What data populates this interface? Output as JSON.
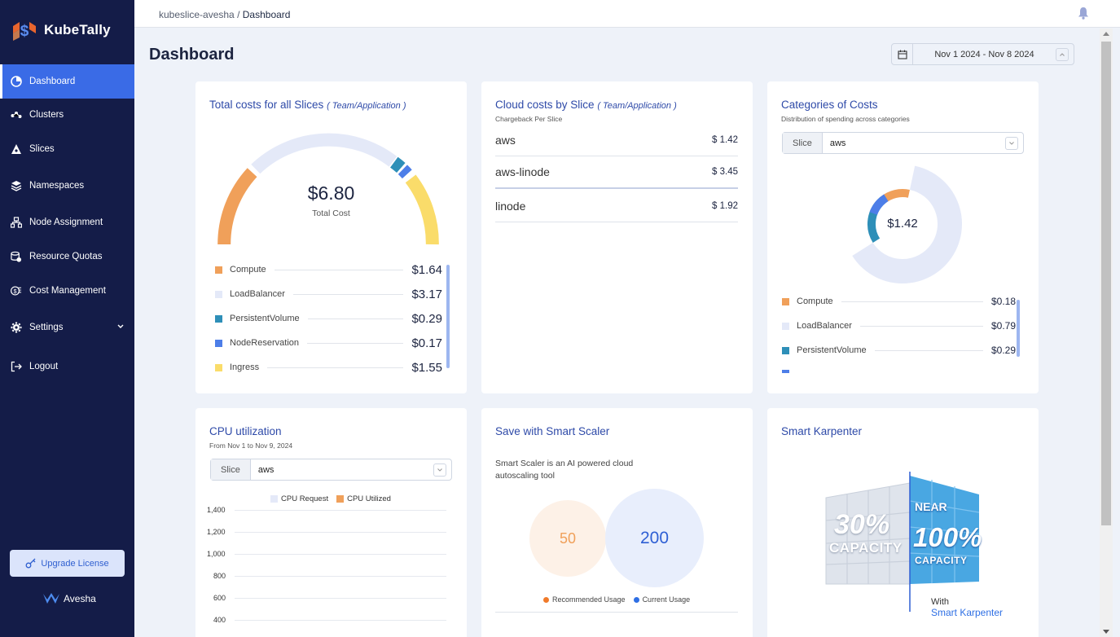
{
  "app": {
    "name": "KubeTally"
  },
  "sidebar": {
    "items": [
      {
        "label": "Dashboard",
        "icon": "pie-chart-icon"
      },
      {
        "label": "Clusters",
        "icon": "cluster-icon"
      },
      {
        "label": "Slices",
        "icon": "slices-icon"
      },
      {
        "label": "Namespaces",
        "icon": "layers-icon"
      },
      {
        "label": "Node Assignment",
        "icon": "sitemap-icon"
      },
      {
        "label": "Resource Quotas",
        "icon": "database-icon"
      },
      {
        "label": "Cost Management",
        "icon": "money-icon"
      },
      {
        "label": "Settings",
        "icon": "gear-icon"
      },
      {
        "label": "Logout",
        "icon": "logout-icon"
      }
    ],
    "upgrade_label": "Upgrade License",
    "brand": "Avesha"
  },
  "topbar": {
    "breadcrumb_root": "kubeslice-avesha",
    "breadcrumb_sep": "/",
    "breadcrumb_current": "Dashboard"
  },
  "page": {
    "title": "Dashboard",
    "date_range": "Nov 1 2024 - Nov 8 2024"
  },
  "total_costs": {
    "title": "Total costs for all Slices",
    "title_tag": "( Team/Application )",
    "amount": "$6.80",
    "amount_label": "Total Cost",
    "colors": {
      "Compute": "#f0a05a",
      "LoadBalancer": "#e4e9f8",
      "PersistentVolume": "#2e8fb8",
      "NodeReservation": "#4d7ee8",
      "Ingress": "#fadc6a"
    },
    "legend": [
      {
        "label": "Compute",
        "value": "$1.64",
        "color": "#f0a05a"
      },
      {
        "label": "LoadBalancer",
        "value": "$3.17",
        "color": "#e4e9f8"
      },
      {
        "label": "PersistentVolume",
        "value": "$0.29",
        "color": "#2e8fb8"
      },
      {
        "label": "NodeReservation",
        "value": "$0.17",
        "color": "#4d7ee8"
      },
      {
        "label": "Ingress",
        "value": "$1.55",
        "color": "#fadc6a"
      }
    ]
  },
  "cloud_costs": {
    "title": "Cloud costs by Slice",
    "title_tag": "( Team/Application )",
    "subtitle": "Chargeback Per Slice",
    "rows": [
      {
        "name": "aws",
        "value": "$ 1.42"
      },
      {
        "name": "aws-linode",
        "value": "$ 3.45"
      },
      {
        "name": "linode",
        "value": "$ 1.92"
      }
    ]
  },
  "categories": {
    "title": "Categories of Costs",
    "subtitle": "Distribution of spending across categories",
    "slice_label": "Slice",
    "slice_value": "aws",
    "donut_total": "$1.42",
    "legend": [
      {
        "label": "Compute",
        "value": "$0.18",
        "color": "#f0a05a"
      },
      {
        "label": "LoadBalancer",
        "value": "$0.79",
        "color": "#e4e9f8"
      },
      {
        "label": "PersistentVolume",
        "value": "$0.29",
        "color": "#2e8fb8"
      }
    ]
  },
  "cpu": {
    "title": "CPU utilization",
    "subtitle": "From Nov 1 to Nov 9, 2024",
    "slice_label": "Slice",
    "slice_value": "aws",
    "legend_request": "CPU Request",
    "legend_utilized": "CPU Utilized",
    "ticks": [
      "1,400",
      "1,200",
      "1,000",
      "800",
      "600",
      "400"
    ]
  },
  "smart_scaler": {
    "title": "Save with Smart Scaler",
    "desc_line1": "Smart Scaler is an AI powered cloud",
    "desc_line2": "autoscaling tool",
    "recommended": "50",
    "current": "200",
    "legend_recommended": "Recommended Usage",
    "legend_current": "Current Usage"
  },
  "karpenter": {
    "title": "Smart Karpenter",
    "left_pct": "30%",
    "left_cap": "CAPACITY",
    "near": "NEAR",
    "right_pct": "100%",
    "right_cap": "CAPACITY",
    "with": "With",
    "brand": "Smart Karpenter"
  },
  "chart_data": {
    "type": "pie",
    "title": "Categories of Costs",
    "categories": [
      "Compute",
      "LoadBalancer",
      "PersistentVolume"
    ],
    "values": [
      0.18,
      0.79,
      0.29
    ]
  }
}
